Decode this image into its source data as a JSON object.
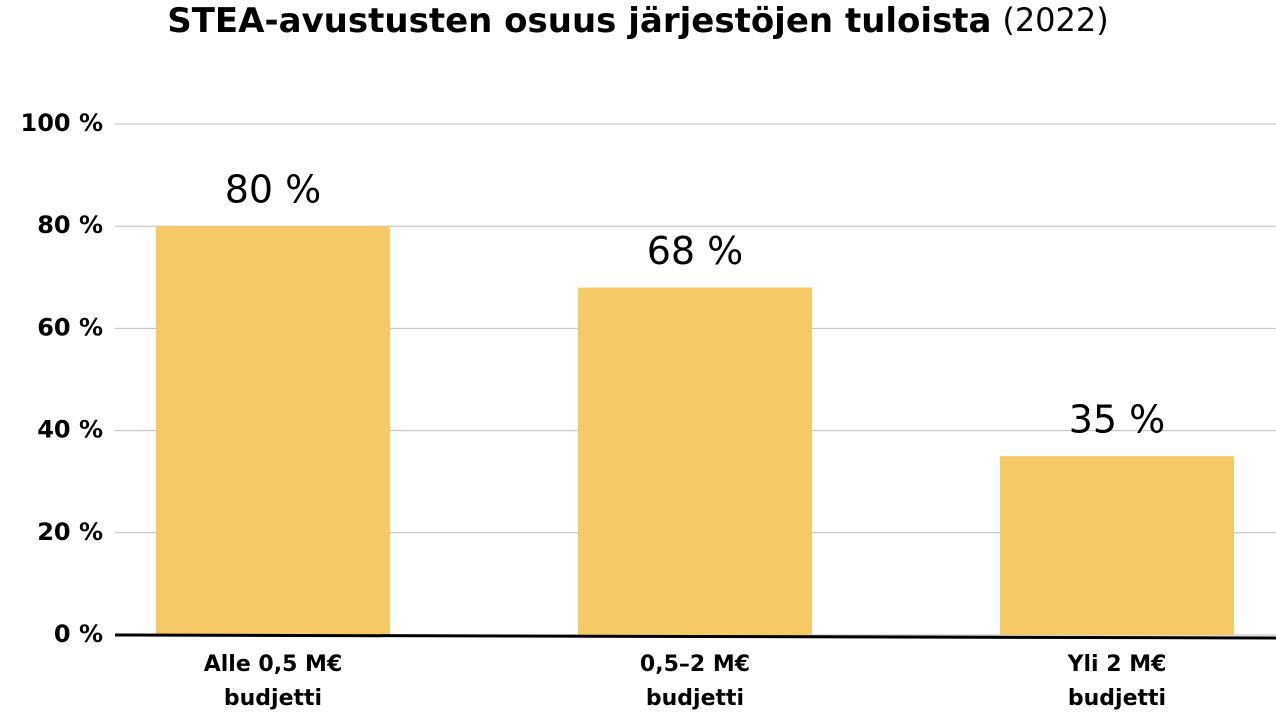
{
  "chart_data": {
    "type": "bar",
    "title": "STEA-avustusten osuus järjestöjen tuloista",
    "subtitle": "(2022)",
    "categories": [
      "Alle 0,5 M€ budjetti",
      "0,5–2 M€ budjetti",
      "Yli 2 M€ budjetti"
    ],
    "values": [
      80,
      68,
      35
    ],
    "value_labels": [
      "80 %",
      "68 %",
      "35 %"
    ],
    "color": "#f5ca66",
    "ylim": [
      0,
      100
    ],
    "yticks": [
      {
        "value": 0,
        "label": "0 %"
      },
      {
        "value": 20,
        "label": "20 %"
      },
      {
        "value": 40,
        "label": "40 %"
      },
      {
        "value": 60,
        "label": "60 %"
      },
      {
        "value": 80,
        "label": "80 %"
      },
      {
        "value": 100,
        "label": "100 %"
      }
    ],
    "grid": true
  }
}
